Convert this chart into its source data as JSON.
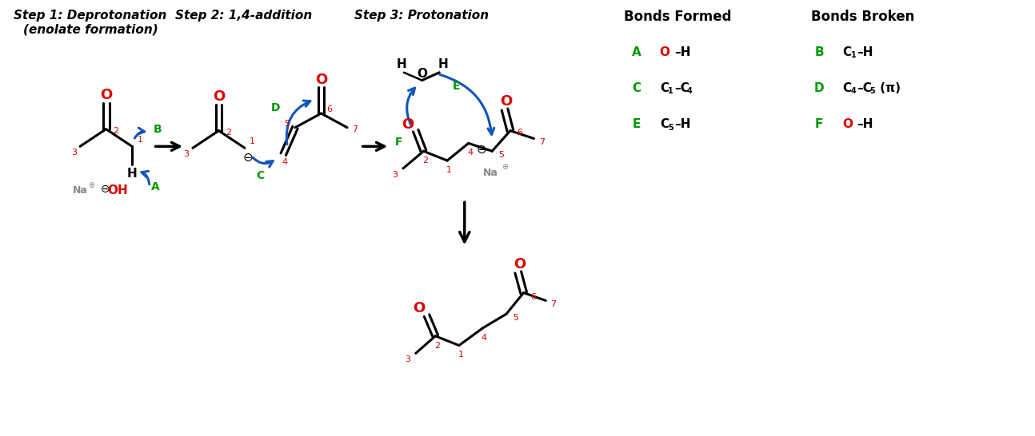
{
  "fig_width": 12.94,
  "fig_height": 5.46,
  "dpi": 100,
  "bg_color": "#ffffff",
  "red": "#dd0000",
  "green": "#009900",
  "blue": "#1155bb",
  "black": "#000000",
  "gray": "#888888",
  "step1_title": "Step 1: Deprotonation\n(enolate formation)",
  "step2_title": "Step 2: 1,4-addition",
  "step3_title": "Step 3: Protonation",
  "bonds_formed_title": "Bonds Formed",
  "bonds_broken_title": "Bonds Broken"
}
